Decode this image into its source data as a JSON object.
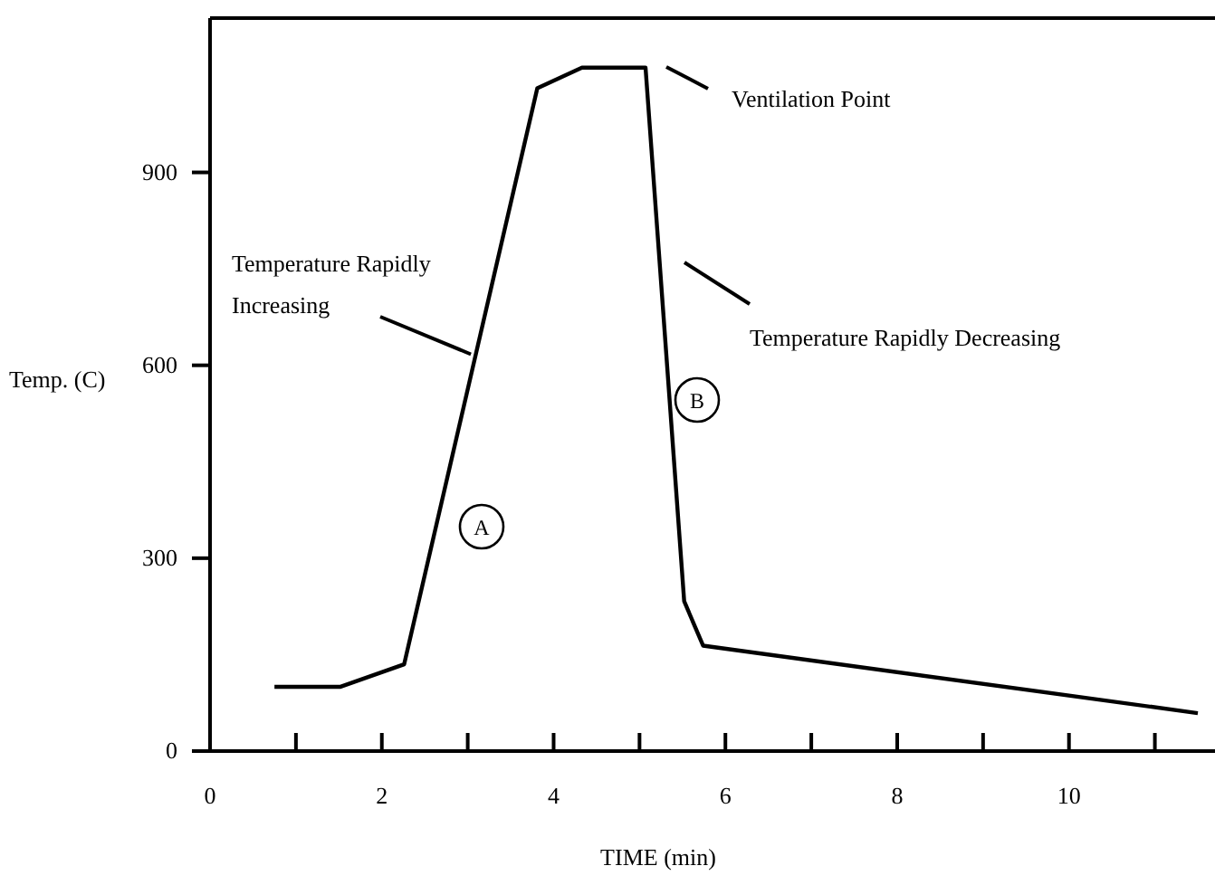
{
  "chart_data": {
    "type": "line",
    "xlabel": "TIME (min)",
    "ylabel": "Temp. (C)",
    "x": [
      0.75,
      1.52,
      2.26,
      3.81,
      4.33,
      5.07,
      5.52,
      5.74,
      11.5
    ],
    "series": [
      {
        "color": "#000000",
        "values": [
          100,
          100,
          135,
          1031,
          1063,
          1063,
          233,
          164,
          59
        ]
      }
    ],
    "xlim": [
      0,
      11.7
    ],
    "ylim": [
      0,
      1140
    ],
    "xticks": [
      0,
      {
        "value": 1,
        "label": null
      },
      2,
      {
        "value": 3,
        "label": null
      },
      4,
      {
        "value": 5,
        "label": null
      },
      6,
      {
        "value": 7,
        "label": null
      },
      8,
      {
        "value": 9,
        "label": null
      },
      10,
      {
        "value": 11,
        "label": null
      }
    ],
    "yticks": [
      0,
      300,
      600,
      900
    ],
    "grid": false,
    "marker": "none",
    "line_style": "solid",
    "annotations": [
      "Ventilation Point",
      {
        "text": "Temperature Rapidly Increasing",
        "x": 3.1,
        "y": 620
      },
      "Temperature Rapidly Decreasing",
      "A",
      "B"
    ]
  }
}
